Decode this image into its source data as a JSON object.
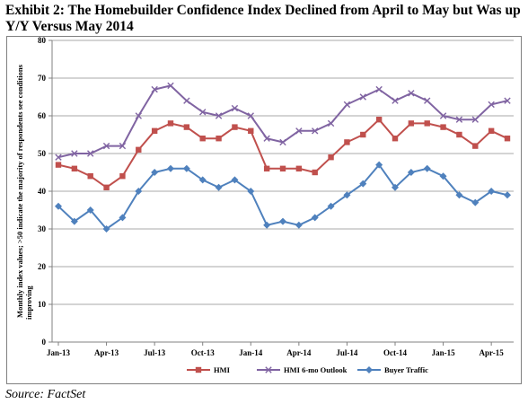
{
  "header": {
    "title": "Exhibit 2: The Homebuilder Confidence Index Declined from April to May but Was up Y/Y Versus May 2014"
  },
  "footer": {
    "source": "Source: FactSet"
  },
  "colors": {
    "hmi": "#c0504d",
    "hmi_outlook": "#8064a2",
    "buyer_traffic": "#4f81bd"
  },
  "chart_data": {
    "type": "line",
    "title": "",
    "ylabel_lines": [
      "Monthly index values; >50 indicate the majority of respondents see conditions",
      "improving"
    ],
    "xlabel": "",
    "ylim": [
      0,
      80
    ],
    "yticks": [
      0,
      10,
      20,
      30,
      40,
      50,
      60,
      70,
      80
    ],
    "x": [
      "Jan-13",
      "Feb-13",
      "Mar-13",
      "Apr-13",
      "May-13",
      "Jun-13",
      "Jul-13",
      "Aug-13",
      "Sep-13",
      "Oct-13",
      "Nov-13",
      "Dec-13",
      "Jan-14",
      "Feb-14",
      "Mar-14",
      "Apr-14",
      "May-14",
      "Jun-14",
      "Jul-14",
      "Aug-14",
      "Sep-14",
      "Oct-14",
      "Nov-14",
      "Dec-14",
      "Jan-15",
      "Feb-15",
      "Mar-15",
      "Apr-15",
      "May-15"
    ],
    "xtick_labels": [
      {
        "index": 0,
        "label": "Jan-13"
      },
      {
        "index": 3,
        "label": "Apr-13"
      },
      {
        "index": 6,
        "label": "Jul-13"
      },
      {
        "index": 9,
        "label": "Oct-13"
      },
      {
        "index": 12,
        "label": "Jan-14"
      },
      {
        "index": 15,
        "label": "Apr-14"
      },
      {
        "index": 18,
        "label": "Jul-14"
      },
      {
        "index": 21,
        "label": "Oct-14"
      },
      {
        "index": 24,
        "label": "Jan-15"
      },
      {
        "index": 27,
        "label": "Apr-15"
      }
    ],
    "grid": true,
    "legend_position": "bottom",
    "series": [
      {
        "name": "HMI",
        "marker": "square",
        "values": [
          47,
          46,
          44,
          41,
          44,
          51,
          56,
          58,
          57,
          54,
          54,
          57,
          56,
          46,
          46,
          46,
          45,
          49,
          53,
          55,
          59,
          54,
          58,
          58,
          57,
          55,
          52,
          56,
          54
        ]
      },
      {
        "name": "HMI 6-mo Outlook",
        "marker": "x",
        "values": [
          49,
          50,
          50,
          52,
          52,
          60,
          67,
          68,
          64,
          61,
          60,
          62,
          60,
          54,
          53,
          56,
          56,
          58,
          63,
          65,
          67,
          64,
          66,
          64,
          60,
          59,
          59,
          63,
          64
        ]
      },
      {
        "name": "Buyer Traffic",
        "marker": "diamond",
        "values": [
          36,
          32,
          35,
          30,
          33,
          40,
          45,
          46,
          46,
          43,
          41,
          43,
          40,
          31,
          32,
          31,
          33,
          36,
          39,
          42,
          47,
          41,
          45,
          46,
          44,
          39,
          37,
          40,
          39
        ]
      }
    ]
  }
}
